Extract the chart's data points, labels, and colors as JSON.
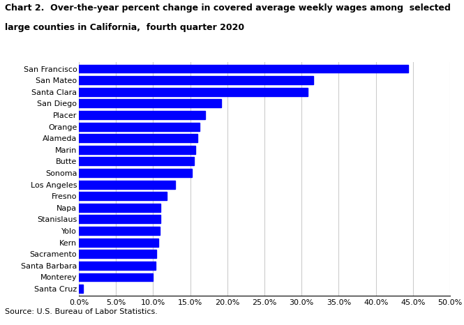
{
  "title_line1": "Chart 2.  Over-the-year percent change in covered average weekly wages among  selected",
  "title_line2": "large counties in California,  fourth quarter 2020",
  "source": "Source: U.S. Bureau of Labor Statistics.",
  "bar_color": "#0000FF",
  "background_color": "#FFFFFF",
  "xlim": [
    0,
    0.5
  ],
  "xtick_values": [
    0.0,
    0.05,
    0.1,
    0.15,
    0.2,
    0.25,
    0.3,
    0.35,
    0.4,
    0.45,
    0.5
  ],
  "categories": [
    "Santa Cruz",
    "Monterey",
    "Santa Barbara",
    "Sacramento",
    "Kern",
    "Yolo",
    "Stanislaus",
    "Napa",
    "Fresno",
    "Los Angeles",
    "Sonoma",
    "Butte",
    "Marin",
    "Alameda",
    "Orange",
    "Placer",
    "San Diego",
    "Santa Clara",
    "San Mateo",
    "San Francisco"
  ],
  "values": [
    0.006,
    0.1,
    0.103,
    0.104,
    0.107,
    0.109,
    0.11,
    0.11,
    0.118,
    0.13,
    0.152,
    0.155,
    0.157,
    0.16,
    0.163,
    0.17,
    0.192,
    0.308,
    0.316,
    0.444
  ]
}
